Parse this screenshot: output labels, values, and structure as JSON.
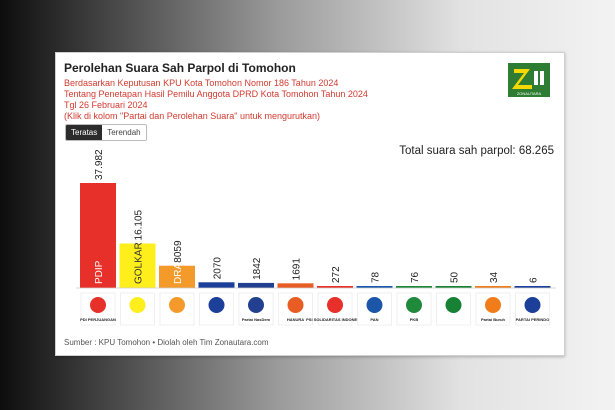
{
  "header": {
    "title": "Perolehan Suara Sah Parpol di Tomohon",
    "subtitle_lines": [
      "Berdasarkan Keputusan KPU Kota Tomohon Nomor 186 Tahun 2024",
      "Tentang Penetapan Hasil Pemilu Anggota DPRD Kota Tomohon Tahun 2024",
      "Tgl 26 Februari 2024",
      "(Klik di kolom \"Partai dan Perolehan Suara\" untuk mengurutkan)"
    ],
    "logo_text": "ZONAUTARA"
  },
  "sort_buttons": {
    "desc_label": "Teratas",
    "asc_label": "Terendah"
  },
  "total_label": "Total suara sah parpol: 68.265",
  "footer": "Sumber : KPU Tomohon • Diolah oleh Tim Zonautara.com",
  "colors": {
    "bars": [
      "#e8302a",
      "#fdee1c",
      "#f39a2b",
      "#1c3f9a",
      "#233f90",
      "#e85d24",
      "#e8302a",
      "#1c56a8",
      "#1f8a3c",
      "#178236",
      "#f07c1a",
      "#1c3f9a"
    ]
  },
  "chart_data": {
    "type": "bar",
    "categories": [
      "PDIP",
      "GOLKAR",
      "GERINDRA",
      "DEMOKRAT",
      "NASDEM",
      "HANURA",
      "PSI",
      "PAN",
      "PKB",
      "PKS",
      "PARTAI BURUH",
      "PERINDO"
    ],
    "values": [
      37982,
      16105,
      8059,
      2070,
      1842,
      1691,
      272,
      78,
      76,
      50,
      34,
      6
    ],
    "value_labels": [
      "37.982",
      "16.105",
      "8059",
      "2070",
      "1842",
      "1691",
      "272",
      "78",
      "76",
      "50",
      "34",
      "6"
    ],
    "inbar_labels": [
      "PDIP",
      "GOLKAR",
      "DRA",
      "",
      "",
      "",
      "",
      "",
      "",
      "",
      "",
      ""
    ],
    "ylim": [
      0,
      37982
    ],
    "legend": "none",
    "grid": false,
    "logo_texts": [
      "PDI PERJUANGAN",
      "",
      "",
      "",
      "Partai NasDem",
      "HANURA",
      "PSI SOLIDARITAS INDONESIA",
      "PAN",
      "PKB",
      "",
      "Partai Buruh",
      "PARTAI PERINDO"
    ]
  }
}
